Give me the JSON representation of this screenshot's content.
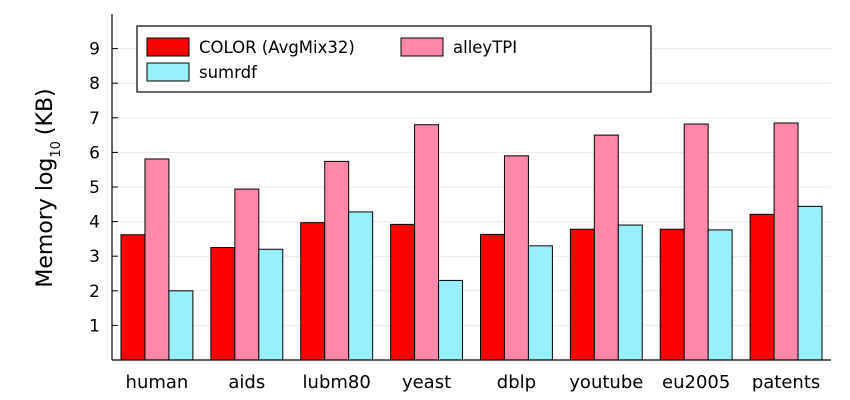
{
  "chart_data": {
    "type": "bar",
    "title": "",
    "xlabel": "",
    "ylabel": "Memory log",
    "ylabel_subscript": "10",
    "ylabel_unit": "(KB)",
    "ylim": [
      0,
      10
    ],
    "yticks": [
      "1",
      "2",
      "3",
      "4",
      "5",
      "6",
      "7",
      "8",
      "9"
    ],
    "grid": true,
    "legend_position": "top-left",
    "categories": [
      "human",
      "aids",
      "lubm80",
      "yeast",
      "dblp",
      "youtube",
      "eu2005",
      "patents"
    ],
    "series": [
      {
        "name": "COLOR (AvgMix32)",
        "color": "#ff0000",
        "values": [
          3.62,
          3.25,
          3.97,
          3.92,
          3.63,
          3.78,
          3.78,
          4.21
        ]
      },
      {
        "name": "alleyTPI",
        "color": "#ff88aa",
        "values": [
          5.81,
          4.94,
          5.74,
          6.8,
          5.9,
          6.5,
          6.82,
          6.85
        ]
      },
      {
        "name": "sumrdf",
        "color": "#98f0fb",
        "values": [
          2.0,
          3.2,
          4.28,
          2.3,
          3.3,
          3.9,
          3.76,
          4.44
        ]
      }
    ]
  }
}
